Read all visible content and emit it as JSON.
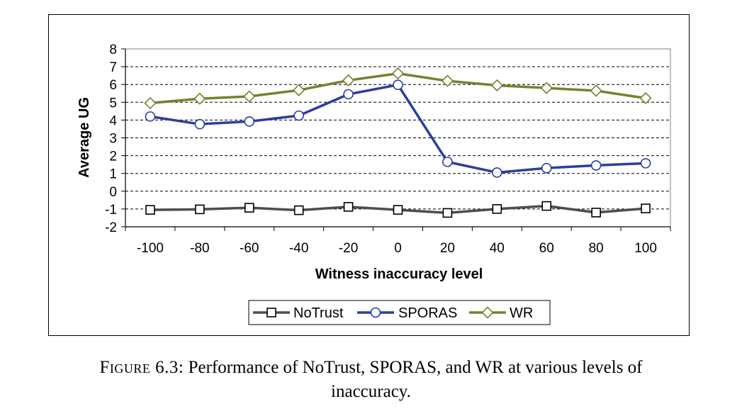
{
  "caption": {
    "label": "Figure 6.3:",
    "text": "Performance of NoTrust, SPORAS, and WR at various levels of",
    "text_line2": "inaccuracy."
  },
  "colors": {
    "NoTrust": "#4d4d4d",
    "SPORAS": "#2b3f9e",
    "WR": "#7a7f2e",
    "grid": "#000000"
  },
  "chart_data": {
    "type": "line",
    "title": "",
    "xlabel": "Witness inaccuracy level",
    "ylabel": "Average UG",
    "x": [
      -100,
      -80,
      -60,
      -40,
      -20,
      0,
      20,
      40,
      60,
      80,
      100
    ],
    "x_tick_labels": [
      "-100",
      "-80",
      "-60",
      "-40",
      "-20",
      "0",
      "20",
      "40",
      "60",
      "80",
      "100"
    ],
    "y_ticks": [
      -2,
      -1,
      0,
      1,
      2,
      3,
      4,
      5,
      6,
      7,
      8
    ],
    "ylim": [
      -2,
      8
    ],
    "grid": "horizontal dashed",
    "legend_position": "bottom",
    "series": [
      {
        "name": "NoTrust",
        "marker": "square",
        "values": [
          -1.05,
          -1.02,
          -0.93,
          -1.07,
          -0.88,
          -1.05,
          -1.22,
          -1.0,
          -0.83,
          -1.2,
          -0.97
        ]
      },
      {
        "name": "SPORAS",
        "marker": "circle",
        "values": [
          4.2,
          3.77,
          3.92,
          4.25,
          5.45,
          5.98,
          1.65,
          1.05,
          1.3,
          1.45,
          1.57
        ]
      },
      {
        "name": "WR",
        "marker": "diamond",
        "values": [
          4.95,
          5.2,
          5.33,
          5.68,
          6.23,
          6.62,
          6.2,
          5.95,
          5.8,
          5.65,
          5.23
        ]
      }
    ]
  }
}
